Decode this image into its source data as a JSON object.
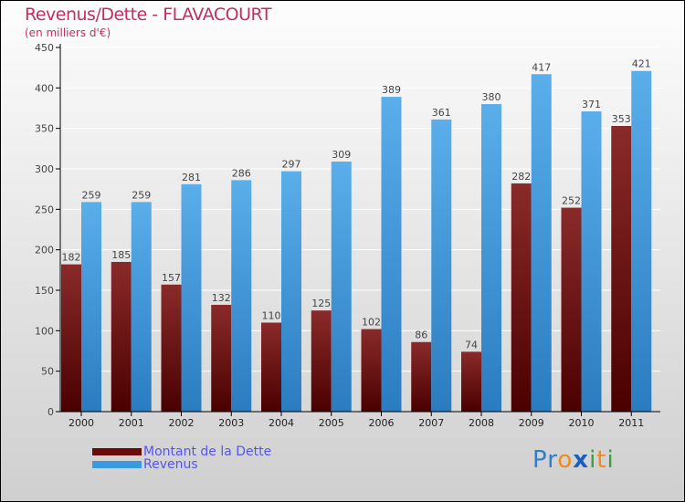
{
  "chart_data": {
    "type": "bar",
    "title": "Revenus/Dette - FLAVACOURT",
    "subtitle": "(en milliers d'€)",
    "categories": [
      "2000",
      "2001",
      "2002",
      "2003",
      "2004",
      "2005",
      "2006",
      "2007",
      "2008",
      "2009",
      "2010",
      "2011"
    ],
    "series": [
      {
        "name": "Montant de la Dette",
        "color": "#6b0a0a",
        "values": [
          182,
          185,
          157,
          132,
          110,
          125,
          102,
          86,
          74,
          282,
          252,
          353
        ]
      },
      {
        "name": "Revenus",
        "color": "#3a9ae0",
        "values": [
          259,
          259,
          281,
          286,
          297,
          309,
          389,
          361,
          380,
          417,
          371,
          421
        ]
      }
    ],
    "yticks": [
      0,
      50,
      100,
      150,
      200,
      250,
      300,
      350,
      400,
      450
    ],
    "ylim": [
      0,
      450
    ],
    "legend": "bottom-left"
  },
  "logo": "Proxiti"
}
